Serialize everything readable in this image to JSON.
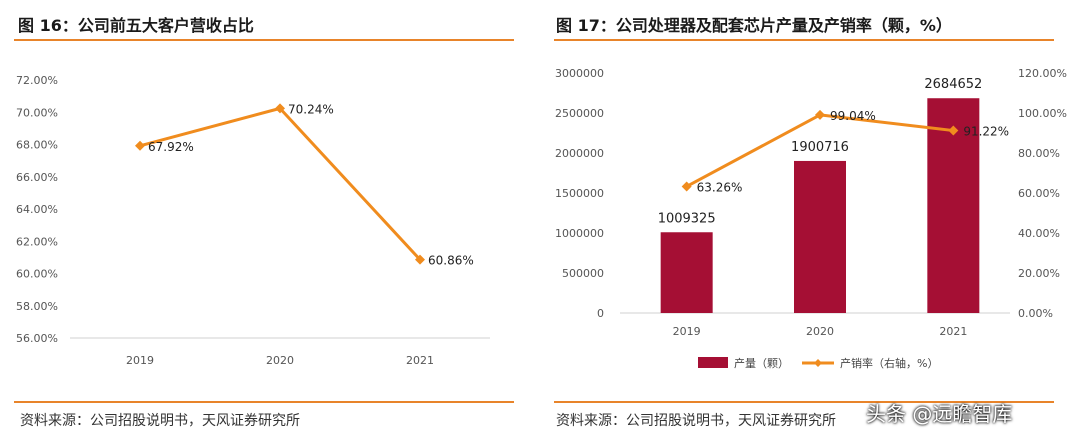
{
  "left_panel": {
    "title": "图 16：公司前五大客户营收占比",
    "source": "资料来源：公司招股说明书，天风证券研究所"
  },
  "right_panel": {
    "title": "图 17：公司处理器及配套芯片产量及产销率（颗，%）",
    "source": "资料来源：公司招股说明书，天风证券研究所"
  },
  "watermark": "头条 @远瞻智库",
  "colors": {
    "accent": "#e8842a",
    "line": "#f08c1e",
    "bar": "#a50f34"
  },
  "chart_data": [
    {
      "type": "line",
      "categories": [
        "2019",
        "2020",
        "2021"
      ],
      "series": [
        {
          "values": [
            67.92,
            70.24,
            60.86
          ],
          "labels": [
            "67.92%",
            "70.24%",
            "60.86%"
          ]
        }
      ],
      "yticks": [
        "56.00%",
        "58.00%",
        "60.00%",
        "62.00%",
        "64.00%",
        "66.00%",
        "68.00%",
        "70.00%",
        "72.00%"
      ],
      "ylim": [
        56,
        72
      ],
      "grid": false,
      "legend": "none"
    },
    {
      "type": "bar",
      "categories": [
        "2019",
        "2020",
        "2021"
      ],
      "series": [
        {
          "name": "产量（颗）",
          "type": "bar",
          "axis": "left",
          "values": [
            1009325,
            1900716,
            2684652
          ],
          "labels": [
            "1009325",
            "1900716",
            "2684652"
          ]
        },
        {
          "name": "产销率（右轴，%）",
          "type": "line",
          "axis": "right",
          "values": [
            63.26,
            99.04,
            91.22
          ],
          "labels": [
            "63.26%",
            "99.04%",
            "91.22%"
          ]
        }
      ],
      "yticks_left": [
        "0",
        "500000",
        "1000000",
        "1500000",
        "2000000",
        "2500000",
        "3000000"
      ],
      "ylim_left": [
        0,
        3000000
      ],
      "yticks_right": [
        "0.00%",
        "20.00%",
        "40.00%",
        "60.00%",
        "80.00%",
        "100.00%",
        "120.00%"
      ],
      "ylim_right": [
        0,
        120
      ],
      "grid": false,
      "legend": "bottom"
    }
  ]
}
